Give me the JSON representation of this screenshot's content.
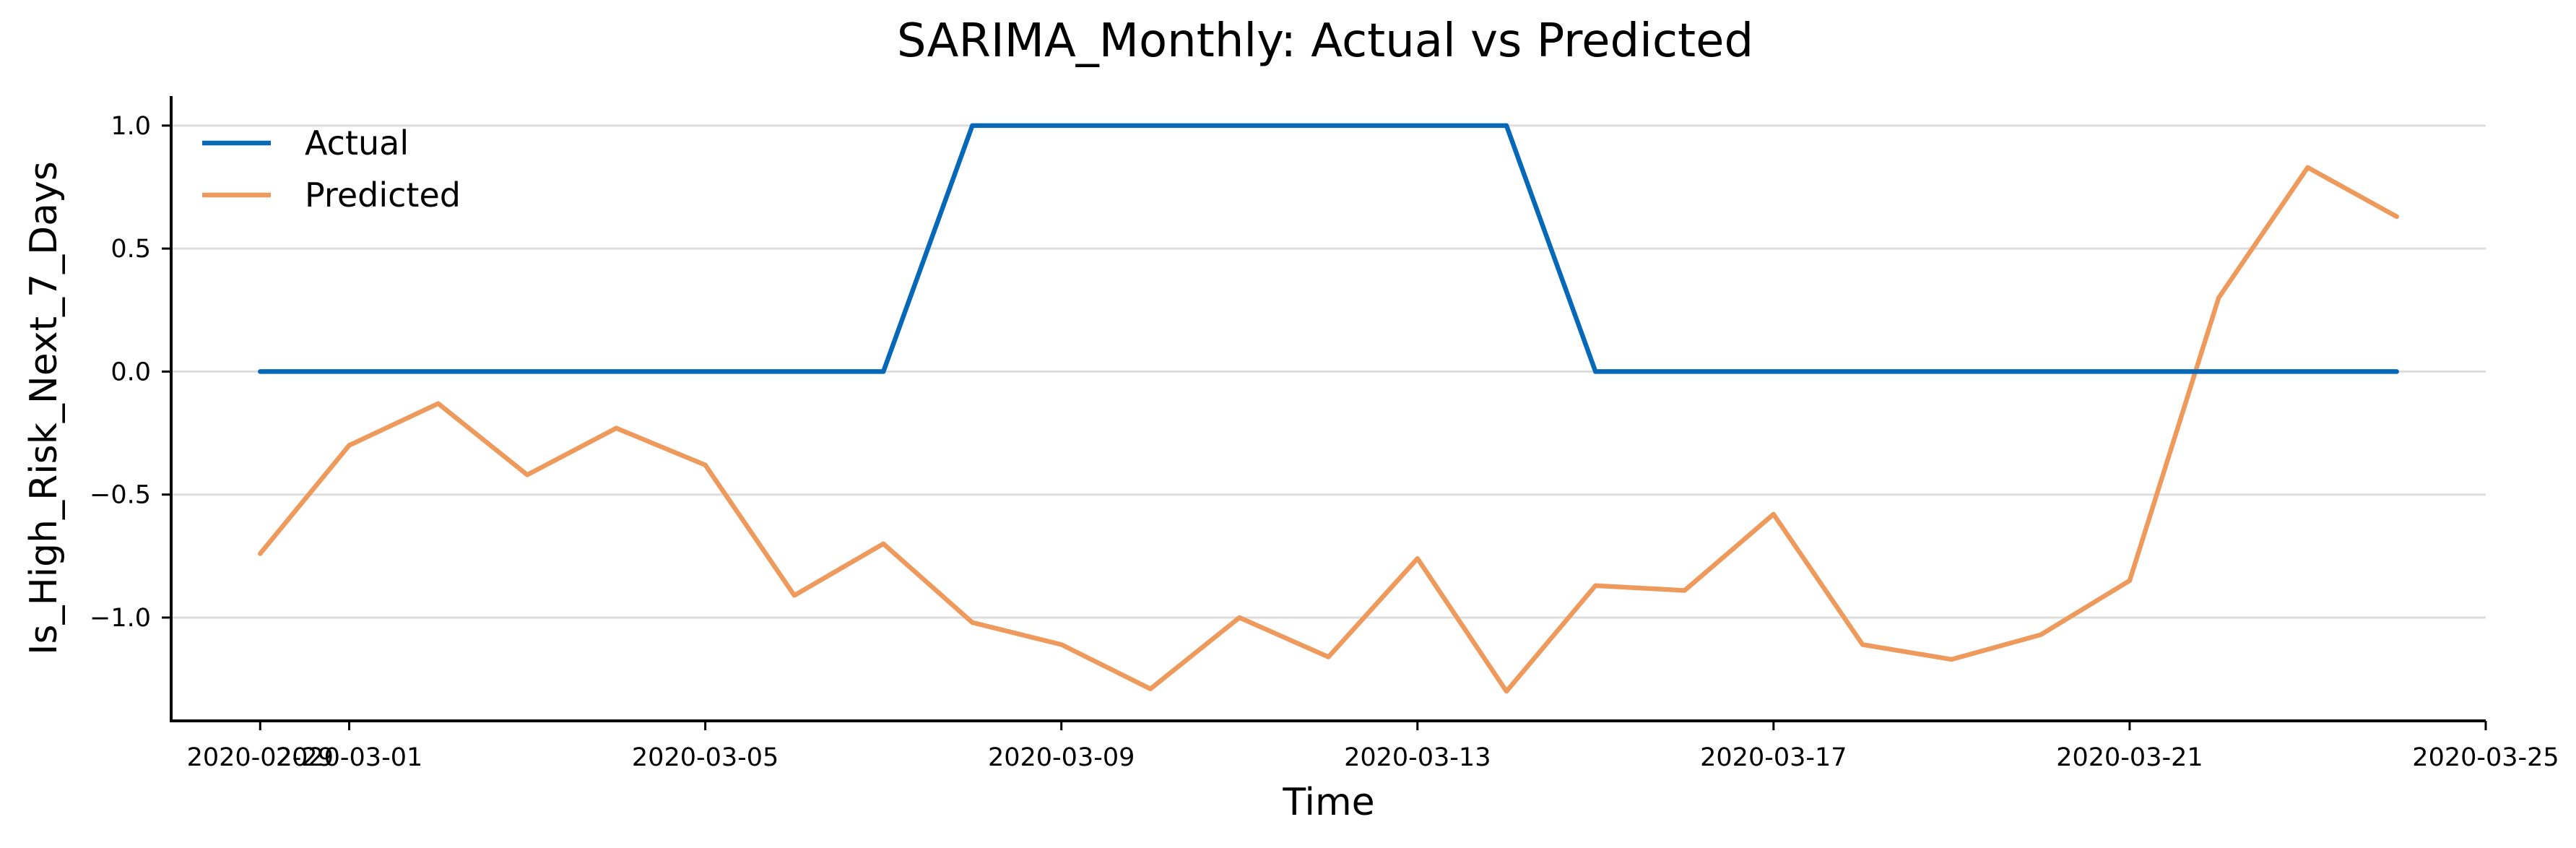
{
  "chart_data": {
    "type": "line",
    "title": "SARIMA_Monthly: Actual vs Predicted",
    "xlabel": "Time",
    "ylabel": "Is_High_Risk_Next_7_Days",
    "x": [
      "2020-02-29",
      "2020-03-01",
      "2020-03-02",
      "2020-03-03",
      "2020-03-04",
      "2020-03-05",
      "2020-03-06",
      "2020-03-07",
      "2020-03-08",
      "2020-03-09",
      "2020-03-10",
      "2020-03-11",
      "2020-03-12",
      "2020-03-13",
      "2020-03-14",
      "2020-03-15",
      "2020-03-16",
      "2020-03-17",
      "2020-03-18",
      "2020-03-19",
      "2020-03-20",
      "2020-03-21",
      "2020-03-22",
      "2020-03-23",
      "2020-03-24"
    ],
    "xlim": [
      "2020-02-28",
      "2020-03-25"
    ],
    "x_ticks": [
      "2020-02-29",
      "2020-03-01",
      "2020-03-05",
      "2020-03-09",
      "2020-03-13",
      "2020-03-17",
      "2020-03-21",
      "2020-03-25"
    ],
    "ylim": [
      -1.42,
      1.12
    ],
    "y_ticks": [
      1.0,
      0.5,
      0.0,
      -0.5,
      -1.0
    ],
    "y_tick_labels": [
      "1.0",
      "0.5",
      "0.0",
      "−0.5",
      "−1.0"
    ],
    "grid": "horizontal",
    "legend_position": "upper-left",
    "series": [
      {
        "name": "Actual",
        "color": "#0868b8",
        "values": [
          0,
          0,
          0,
          0,
          0,
          0,
          0,
          0,
          1,
          1,
          1,
          1,
          1,
          1,
          1,
          0,
          0,
          0,
          0,
          0,
          0,
          0,
          0,
          0,
          0
        ]
      },
      {
        "name": "Predicted",
        "color": "#ee9a5c",
        "values": [
          -0.74,
          -0.3,
          -0.13,
          -0.42,
          -0.23,
          -0.38,
          -0.91,
          -0.7,
          -1.02,
          -1.11,
          -1.29,
          -1.0,
          -1.16,
          -0.76,
          -1.3,
          -0.87,
          -0.89,
          -0.58,
          -1.11,
          -1.17,
          -1.07,
          -0.85,
          0.3,
          0.83,
          0.63
        ]
      }
    ]
  }
}
